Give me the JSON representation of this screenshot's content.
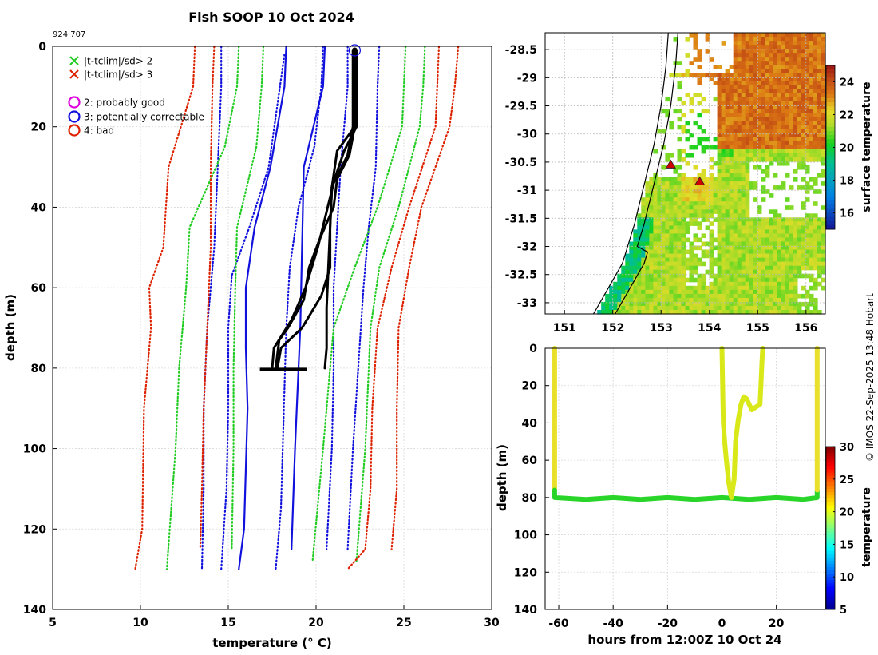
{
  "figure": {
    "title": "Fish SOOP 10 Oct 2024",
    "subtitle": "924 707",
    "credit": "© IMOS 22-Sep-2025 13:48 Hobart"
  },
  "colors": {
    "clim_sd1": "#1111dd",
    "clim_sd2": "#22cc22",
    "clim_sd3": "#dd2200",
    "profile": "#000000",
    "map_land": "#ffffff",
    "marker": "#cc0000"
  },
  "chart_data": [
    {
      "type": "line",
      "name": "profile",
      "xlabel": "temperature (° C)",
      "ylabel": "depth (m)",
      "xlim": [
        5,
        30
      ],
      "ylim": [
        0,
        140
      ],
      "y_inverted": true,
      "grid": true,
      "xticks": [
        5,
        10,
        15,
        20,
        25,
        30
      ],
      "yticks": [
        0,
        20,
        40,
        60,
        80,
        100,
        120,
        140
      ],
      "legend": [
        {
          "marker": "x",
          "color": "#22cc22",
          "label": "|t-tclim|/sd> 2"
        },
        {
          "marker": "x",
          "color": "#dd2200",
          "label": "|t-tclim|/sd> 3"
        },
        {
          "marker": "o",
          "color": "#dd00dd",
          "label": "2: probably good"
        },
        {
          "marker": "o",
          "color": "#1111dd",
          "label": "3: potentially correctable"
        },
        {
          "marker": "o",
          "color": "#dd2200",
          "label": "4: bad"
        }
      ],
      "series": [
        {
          "name": "clim -1sd",
          "style": "solid",
          "color": "#1111dd",
          "points": [
            [
              18.3,
              0
            ],
            [
              18.2,
              10
            ],
            [
              17.4,
              30
            ],
            [
              16.5,
              45
            ],
            [
              16.0,
              60
            ],
            [
              16.0,
              75
            ],
            [
              16.1,
              90
            ],
            [
              16.0,
              105
            ],
            [
              15.9,
              120
            ],
            [
              15.6,
              130
            ]
          ]
        },
        {
          "name": "clim mean",
          "style": "dotted",
          "color": "#1111dd",
          "points": [
            [
              20.4,
              0
            ],
            [
              20.3,
              10
            ],
            [
              19.9,
              25
            ],
            [
              19.0,
              40
            ],
            [
              18.5,
              55
            ],
            [
              18.3,
              70
            ],
            [
              18.2,
              85
            ],
            [
              18.1,
              100
            ],
            [
              18.0,
              115
            ],
            [
              17.7,
              130
            ]
          ]
        },
        {
          "name": "clim +1sd",
          "style": "solid",
          "color": "#1111dd",
          "points": [
            [
              20.5,
              0
            ],
            [
              20.4,
              10
            ],
            [
              19.3,
              30
            ],
            [
              19.2,
              50
            ],
            [
              19.1,
              70
            ],
            [
              18.8,
              100
            ],
            [
              18.6,
              125
            ]
          ]
        },
        {
          "name": "clim +1sd dotted",
          "style": "dotted",
          "color": "#1111dd",
          "points": [
            [
              21.8,
              0
            ],
            [
              21.8,
              10
            ],
            [
              21.4,
              30
            ],
            [
              21.2,
              45
            ],
            [
              21.0,
              60
            ],
            [
              21.0,
              80
            ],
            [
              20.9,
              100
            ],
            [
              20.6,
              125
            ]
          ]
        },
        {
          "name": "clim -2sd dotted blue",
          "style": "dotted",
          "color": "#1111dd",
          "points": [
            [
              14.6,
              0
            ],
            [
              14.6,
              10
            ],
            [
              14.4,
              30
            ],
            [
              14.2,
              50
            ],
            [
              13.8,
              70
            ],
            [
              13.6,
              90
            ],
            [
              13.6,
              110
            ],
            [
              13.5,
              130
            ]
          ]
        },
        {
          "name": "clim -1.5sd dotted blue",
          "style": "dotted",
          "color": "#1111dd",
          "points": [
            [
              18.2,
              2
            ],
            [
              17.3,
              30
            ],
            [
              16.2,
              45
            ],
            [
              15.2,
              57
            ],
            [
              15.0,
              70
            ],
            [
              15.0,
              90
            ],
            [
              14.9,
              110
            ],
            [
              14.6,
              130
            ]
          ]
        },
        {
          "name": "clim +1.5sd dotted blue",
          "style": "dotted",
          "color": "#1111dd",
          "points": [
            [
              23.6,
              0
            ],
            [
              23.5,
              10
            ],
            [
              23.4,
              30
            ],
            [
              23.0,
              45
            ],
            [
              22.7,
              60
            ],
            [
              22.4,
              80
            ],
            [
              22.1,
              100
            ],
            [
              21.8,
              125
            ]
          ]
        },
        {
          "name": "clim -2sd",
          "style": "dotted",
          "color": "#22cc22",
          "points": [
            [
              15.6,
              0
            ],
            [
              15.5,
              10
            ],
            [
              14.8,
              25
            ],
            [
              12.8,
              45
            ],
            [
              12.6,
              60
            ],
            [
              12.2,
              80
            ],
            [
              12.0,
              100
            ],
            [
              11.5,
              130
            ]
          ]
        },
        {
          "name": "clim -2sd inner",
          "style": "dotted",
          "color": "#22cc22",
          "points": [
            [
              17.0,
              0
            ],
            [
              16.9,
              10
            ],
            [
              16.6,
              25
            ],
            [
              15.5,
              45
            ],
            [
              15.4,
              60
            ],
            [
              15.3,
              80
            ],
            [
              15.3,
              100
            ],
            [
              15.2,
              125
            ]
          ]
        },
        {
          "name": "clim +2sd inner",
          "style": "dotted",
          "color": "#22cc22",
          "points": [
            [
              25.1,
              0
            ],
            [
              25.0,
              10
            ],
            [
              24.9,
              20
            ],
            [
              23.5,
              40
            ],
            [
              22.2,
              55
            ],
            [
              21.0,
              70
            ],
            [
              20.4,
              100
            ],
            [
              19.8,
              128
            ]
          ]
        },
        {
          "name": "clim +2sd",
          "style": "dotted",
          "color": "#22cc22",
          "points": [
            [
              26.2,
              0
            ],
            [
              26.1,
              10
            ],
            [
              25.9,
              20
            ],
            [
              24.7,
              40
            ],
            [
              23.6,
              55
            ],
            [
              23.1,
              70
            ],
            [
              22.8,
              100
            ],
            [
              22.3,
              128
            ]
          ]
        },
        {
          "name": "clim -3sd",
          "style": "dotted",
          "color": "#dd2200",
          "points": [
            [
              13.1,
              0
            ],
            [
              13.0,
              10
            ],
            [
              11.6,
              30
            ],
            [
              11.3,
              50
            ],
            [
              10.5,
              60
            ],
            [
              10.6,
              70
            ],
            [
              10.2,
              90
            ],
            [
              10.1,
              120
            ],
            [
              9.7,
              130
            ]
          ]
        },
        {
          "name": "clim -3sd inner",
          "style": "dotted",
          "color": "#dd2200",
          "points": [
            [
              14.2,
              0
            ],
            [
              14.1,
              10
            ],
            [
              14.0,
              30
            ],
            [
              14.0,
              50
            ],
            [
              13.8,
              70
            ],
            [
              13.6,
              90
            ],
            [
              13.5,
              110
            ],
            [
              13.4,
              125
            ]
          ]
        },
        {
          "name": "clim +3sd inner",
          "style": "dotted",
          "color": "#dd2200",
          "points": [
            [
              27.0,
              0
            ],
            [
              26.9,
              10
            ],
            [
              26.8,
              20
            ],
            [
              25.3,
              40
            ],
            [
              24.3,
              55
            ],
            [
              23.5,
              70
            ],
            [
              23.2,
              90
            ],
            [
              23.1,
              110
            ],
            [
              22.8,
              125
            ],
            [
              21.8,
              130
            ]
          ]
        },
        {
          "name": "clim +3sd",
          "style": "dotted",
          "color": "#dd2200",
          "points": [
            [
              28.1,
              0
            ],
            [
              27.9,
              10
            ],
            [
              27.6,
              20
            ],
            [
              26.0,
              40
            ],
            [
              25.3,
              55
            ],
            [
              24.7,
              70
            ],
            [
              24.6,
              90
            ],
            [
              24.6,
              110
            ],
            [
              24.3,
              125
            ]
          ]
        },
        {
          "name": "profile A",
          "style": "solid",
          "color": "#000000",
          "points": [
            [
              22.2,
              1
            ],
            [
              22.2,
              10
            ],
            [
              22.2,
              20
            ],
            [
              21.2,
              26
            ],
            [
              20.9,
              35
            ],
            [
              20.8,
              45
            ],
            [
              20.7,
              55
            ],
            [
              20.6,
              65
            ],
            [
              20.6,
              75
            ],
            [
              20.5,
              80
            ]
          ]
        },
        {
          "name": "profile B",
          "style": "solid",
          "color": "#000000",
          "points": [
            [
              22.3,
              1
            ],
            [
              22.3,
              20
            ],
            [
              21.6,
              26
            ],
            [
              20.9,
              35
            ],
            [
              20.8,
              45
            ],
            [
              20.8,
              55
            ],
            [
              20.3,
              62
            ],
            [
              19.2,
              70
            ],
            [
              18.0,
              75
            ],
            [
              17.8,
              80
            ]
          ]
        },
        {
          "name": "profile C",
          "style": "solid",
          "color": "#000000",
          "points": [
            [
              22.1,
              1
            ],
            [
              22.1,
              20
            ],
            [
              21.8,
              27
            ],
            [
              21.0,
              34
            ],
            [
              20.1,
              50
            ],
            [
              19.4,
              60
            ],
            [
              18.6,
              68
            ],
            [
              17.6,
              75
            ],
            [
              17.5,
              80
            ]
          ]
        },
        {
          "name": "profile D",
          "style": "solid",
          "color": "#000000",
          "points": [
            [
              22.2,
              1
            ],
            [
              22.2,
              20
            ],
            [
              21.9,
              27
            ],
            [
              21.2,
              33
            ],
            [
              21.0,
              40
            ],
            [
              20.2,
              48
            ],
            [
              19.6,
              55
            ],
            [
              19.3,
              63
            ],
            [
              18.4,
              70
            ],
            [
              17.9,
              73
            ],
            [
              17.7,
              80
            ]
          ]
        }
      ],
      "markers": [
        {
          "type": "circle",
          "color": "#1111dd",
          "x": 22.2,
          "y": 1
        }
      ],
      "bottom_bar": {
        "x_from": 16.8,
        "x_to": 19.5,
        "y": 80.3
      }
    },
    {
      "type": "heatmap",
      "name": "sst-map",
      "colorbar_label": "surface temperature",
      "clim": [
        15,
        25
      ],
      "colorbar_ticks": [
        16,
        18,
        20,
        22,
        24
      ],
      "xlim": [
        150.6,
        156.4
      ],
      "ylim": [
        -33.2,
        -28.2
      ],
      "xticks": [
        151,
        152,
        153,
        154,
        155,
        156
      ],
      "yticks": [
        -28.5,
        -29,
        -29.5,
        -30,
        -30.5,
        -31,
        -31.5,
        -32,
        -32.5,
        -33
      ],
      "grid": true,
      "stations": [
        [
          153.2,
          -30.55
        ],
        [
          153.8,
          -30.85
        ]
      ]
    },
    {
      "type": "scatter",
      "name": "depth-time",
      "xlabel": "hours from 12:00Z 10 Oct 24",
      "ylabel": "depth (m)",
      "colorbar_label": "temperature",
      "clim": [
        5,
        30
      ],
      "colorbar_ticks": [
        5,
        10,
        15,
        20,
        25,
        30
      ],
      "xlim": [
        -65,
        38
      ],
      "ylim": [
        0,
        140
      ],
      "y_inverted": true,
      "grid": true,
      "xticks": [
        -60,
        -40,
        -20,
        0,
        20
      ],
      "yticks": [
        0,
        20,
        40,
        60,
        80,
        100,
        120,
        140
      ],
      "traces": [
        {
          "color": "#e8e02a",
          "points": [
            [
              -61.5,
              0
            ],
            [
              -61.5,
              76
            ]
          ]
        },
        {
          "color": "#2ad52a",
          "points": [
            [
              -61.5,
              76
            ],
            [
              -61.5,
              80
            ],
            [
              -50,
              81
            ],
            [
              -40,
              80
            ],
            [
              -30,
              81
            ],
            [
              -20,
              80
            ],
            [
              -10,
              81
            ],
            [
              0,
              80
            ],
            [
              10,
              81
            ],
            [
              20,
              80
            ],
            [
              30,
              81
            ],
            [
              35,
              80
            ],
            [
              35,
              76
            ]
          ]
        },
        {
          "color": "#e8e02a",
          "points": [
            [
              35,
              76
            ],
            [
              35,
              0
            ]
          ]
        },
        {
          "color": "#d8e818",
          "points": [
            [
              0,
              0
            ],
            [
              0.5,
              40
            ],
            [
              1,
              50
            ],
            [
              1.6,
              60
            ],
            [
              2.5,
              72
            ],
            [
              3.5,
              80
            ],
            [
              4.5,
              70
            ],
            [
              5,
              50
            ],
            [
              6,
              38
            ],
            [
              7,
              30
            ],
            [
              8,
              26
            ],
            [
              9,
              27
            ],
            [
              10,
              30
            ],
            [
              11,
              33
            ],
            [
              12,
              32
            ],
            [
              14,
              30
            ],
            [
              14.8,
              5
            ],
            [
              15,
              0
            ]
          ]
        }
      ]
    }
  ]
}
